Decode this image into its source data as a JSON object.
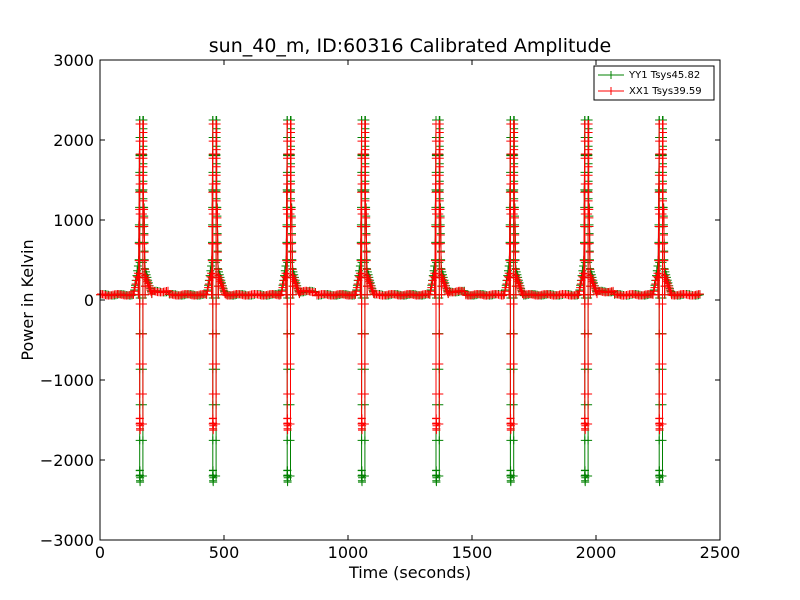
{
  "chart_data": {
    "type": "line",
    "title": "sun_40_m, ID:60316 Calibrated Amplitude",
    "xlabel": "Time (seconds)",
    "ylabel": "Power in Kelvin",
    "xlim": [
      0,
      2500
    ],
    "ylim": [
      -3000,
      3000
    ],
    "xticks": [
      0,
      500,
      1000,
      1500,
      2000,
      2500
    ],
    "yticks": [
      -3000,
      -2000,
      -1000,
      0,
      1000,
      2000,
      3000
    ],
    "xtick_labels": [
      "0",
      "500",
      "1000",
      "1500",
      "2000",
      "2500"
    ],
    "ytick_labels": [
      "−3000",
      "−2000",
      "−1000",
      "0",
      "1000",
      "2000",
      "3000"
    ],
    "grid": false,
    "legend_position": "top-right",
    "marker": "+",
    "baseline": 65,
    "passes": [
      {
        "start": 160,
        "end": 175
      },
      {
        "start": 455,
        "end": 470
      },
      {
        "start": 755,
        "end": 770
      },
      {
        "start": 1055,
        "end": 1070
      },
      {
        "start": 1355,
        "end": 1370
      },
      {
        "start": 1655,
        "end": 1670
      },
      {
        "start": 1955,
        "end": 1970
      },
      {
        "start": 2255,
        "end": 2270
      }
    ],
    "x_end": 2420,
    "series": [
      {
        "name": "YY1 Tsys45.82",
        "color": "#008000",
        "peak": 2250,
        "trough": -2200,
        "shoulder": 400
      },
      {
        "name": "XX1 Tsys39.59",
        "color": "#ff0000",
        "peak": 2200,
        "trough": -1550,
        "shoulder": 300
      }
    ]
  }
}
